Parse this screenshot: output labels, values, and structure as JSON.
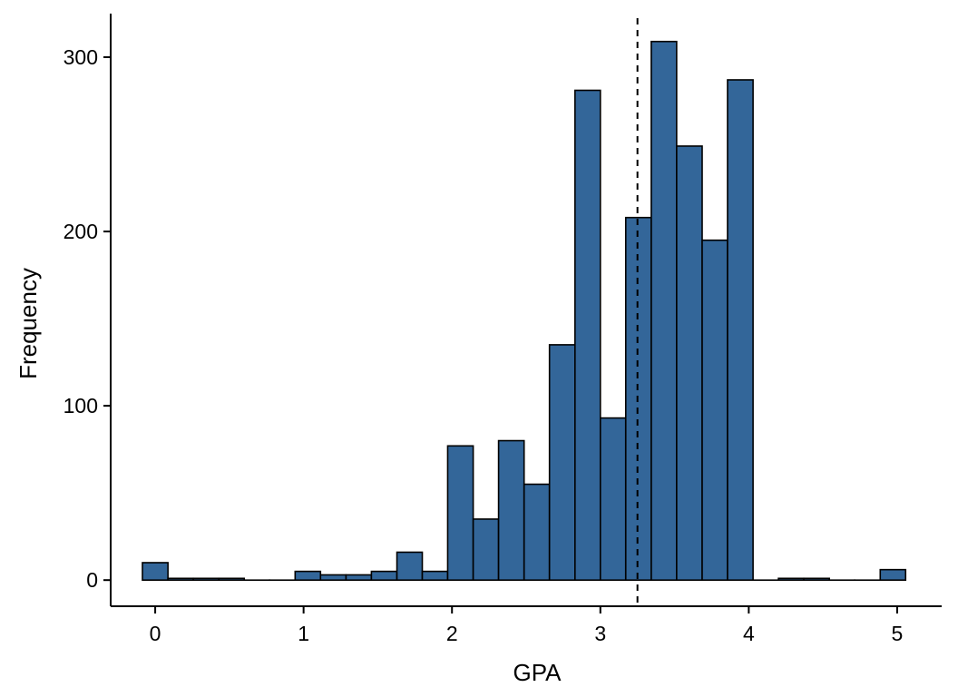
{
  "chart_data": {
    "type": "bar",
    "title": "",
    "xlabel": "GPA",
    "ylabel": "Frequency",
    "xlim": [
      -0.3,
      5.3
    ],
    "ylim": [
      -15,
      325
    ],
    "x_ticks": [
      0,
      1,
      2,
      3,
      4,
      5
    ],
    "y_ticks": [
      0,
      100,
      200,
      300
    ],
    "grid": false,
    "legend": "none",
    "bar_fill": "#336699",
    "bar_outline": "#000000",
    "vline_x": 3.25,
    "vline_style": "dashed",
    "bins": [
      {
        "x0": -0.086,
        "x1": 0.086,
        "count": 10
      },
      {
        "x0": 0.086,
        "x1": 0.257,
        "count": 1
      },
      {
        "x0": 0.257,
        "x1": 0.429,
        "count": 1
      },
      {
        "x0": 0.429,
        "x1": 0.6,
        "count": 1
      },
      {
        "x0": 0.6,
        "x1": 0.771,
        "count": 0
      },
      {
        "x0": 0.771,
        "x1": 0.943,
        "count": 0
      },
      {
        "x0": 0.943,
        "x1": 1.114,
        "count": 5
      },
      {
        "x0": 1.114,
        "x1": 1.286,
        "count": 3
      },
      {
        "x0": 1.286,
        "x1": 1.457,
        "count": 3
      },
      {
        "x0": 1.457,
        "x1": 1.629,
        "count": 5
      },
      {
        "x0": 1.629,
        "x1": 1.8,
        "count": 16
      },
      {
        "x0": 1.8,
        "x1": 1.971,
        "count": 5
      },
      {
        "x0": 1.971,
        "x1": 2.143,
        "count": 77
      },
      {
        "x0": 2.143,
        "x1": 2.314,
        "count": 35
      },
      {
        "x0": 2.314,
        "x1": 2.486,
        "count": 80
      },
      {
        "x0": 2.486,
        "x1": 2.657,
        "count": 55
      },
      {
        "x0": 2.657,
        "x1": 2.829,
        "count": 135
      },
      {
        "x0": 2.829,
        "x1": 3.0,
        "count": 281
      },
      {
        "x0": 3.0,
        "x1": 3.171,
        "count": 93
      },
      {
        "x0": 3.171,
        "x1": 3.343,
        "count": 208
      },
      {
        "x0": 3.343,
        "x1": 3.514,
        "count": 309
      },
      {
        "x0": 3.514,
        "x1": 3.686,
        "count": 249
      },
      {
        "x0": 3.686,
        "x1": 3.857,
        "count": 195
      },
      {
        "x0": 3.857,
        "x1": 4.029,
        "count": 287
      },
      {
        "x0": 4.029,
        "x1": 4.2,
        "count": 0
      },
      {
        "x0": 4.2,
        "x1": 4.371,
        "count": 1
      },
      {
        "x0": 4.371,
        "x1": 4.543,
        "count": 1
      },
      {
        "x0": 4.543,
        "x1": 4.714,
        "count": 0
      },
      {
        "x0": 4.714,
        "x1": 4.886,
        "count": 0
      },
      {
        "x0": 4.886,
        "x1": 5.057,
        "count": 6
      }
    ]
  }
}
